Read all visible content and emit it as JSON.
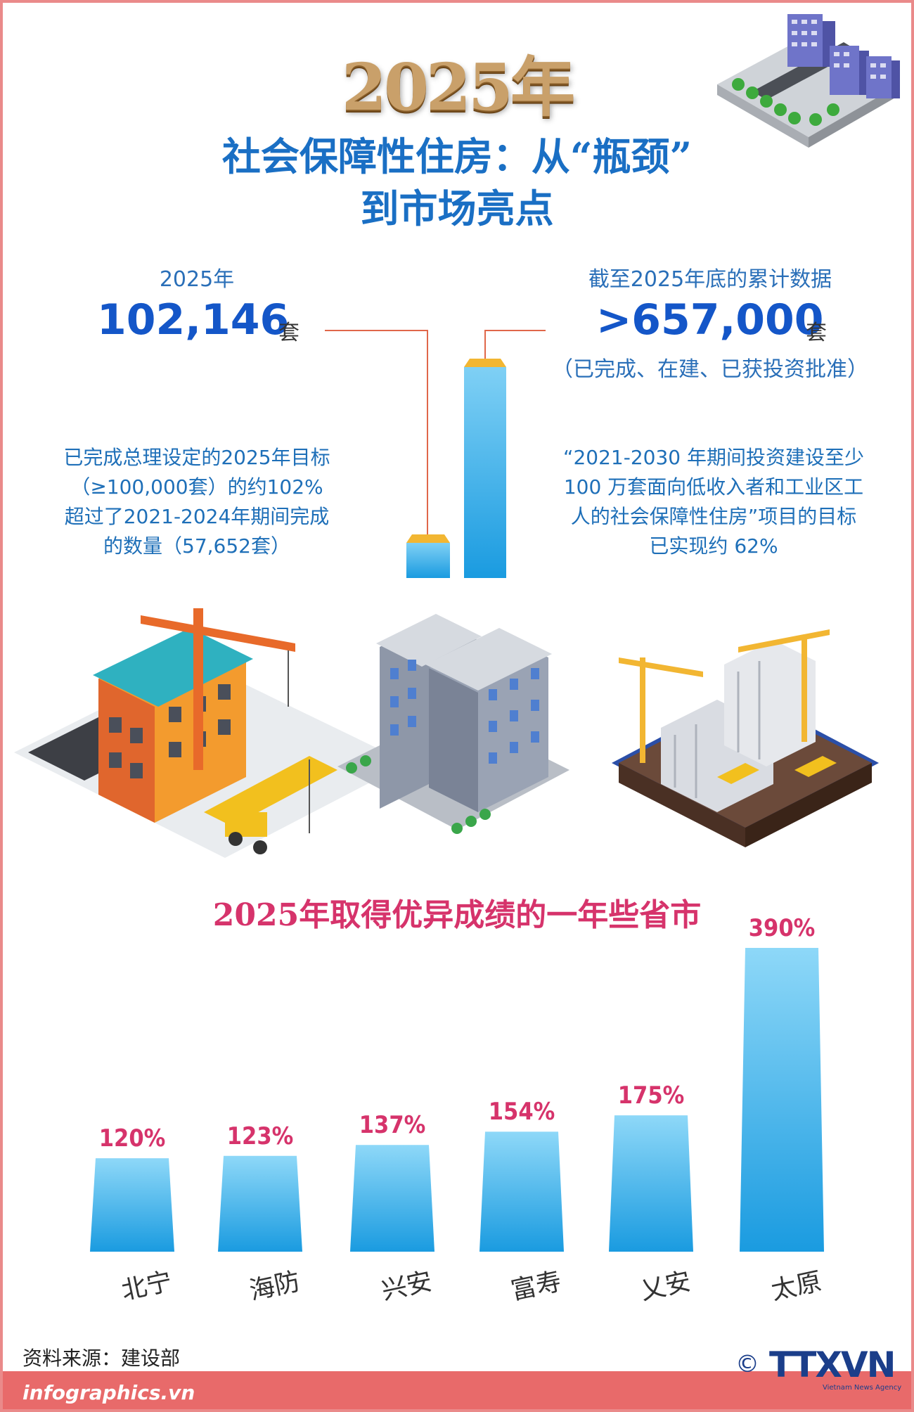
{
  "title": {
    "year": "2025年",
    "line1": "社会保障性住房：从“瓶颈”",
    "line2": "到市场亮点"
  },
  "left_stat": {
    "label": "2025年",
    "value": "102,146",
    "unit": "套"
  },
  "right_stat": {
    "label": "截至2025年底的累计数据",
    "value": ">657,000",
    "unit": "套",
    "sub": "（已完成、在建、已获投资批准）"
  },
  "left_note": [
    "已完成总理设定的2025年目标",
    "（≥100,000套）的约102%",
    "超过了2021-2024年期间完成",
    "的数量（57,652套）"
  ],
  "right_note": [
    "“2021-2030 年期间投资建设至少",
    "100 万套面向低收入者和工业区工",
    "人的社会保障性住房”项目的目标",
    "已实现约 62%"
  ],
  "chart_data": {
    "type": "bar",
    "title": "2025年取得优异成绩的一年些省市",
    "categories": [
      "北宁",
      "海防",
      "兴安",
      "富寿",
      "乂安",
      "太原"
    ],
    "values": [
      120,
      123,
      137,
      154,
      175,
      390
    ],
    "value_labels": [
      "120%",
      "123%",
      "137%",
      "154%",
      "175%",
      "390%"
    ],
    "color": "#2aa7e6"
  },
  "footer": {
    "source": "资料来源：建设部",
    "url": "infographics.vn",
    "copyright": "©",
    "logo": "TTXVN",
    "logo_sub": "Vietnam News Agency"
  },
  "colors": {
    "accent_blue": "#1456c8",
    "accent_pink": "#d6336b",
    "frame": "#ea8a8a"
  }
}
